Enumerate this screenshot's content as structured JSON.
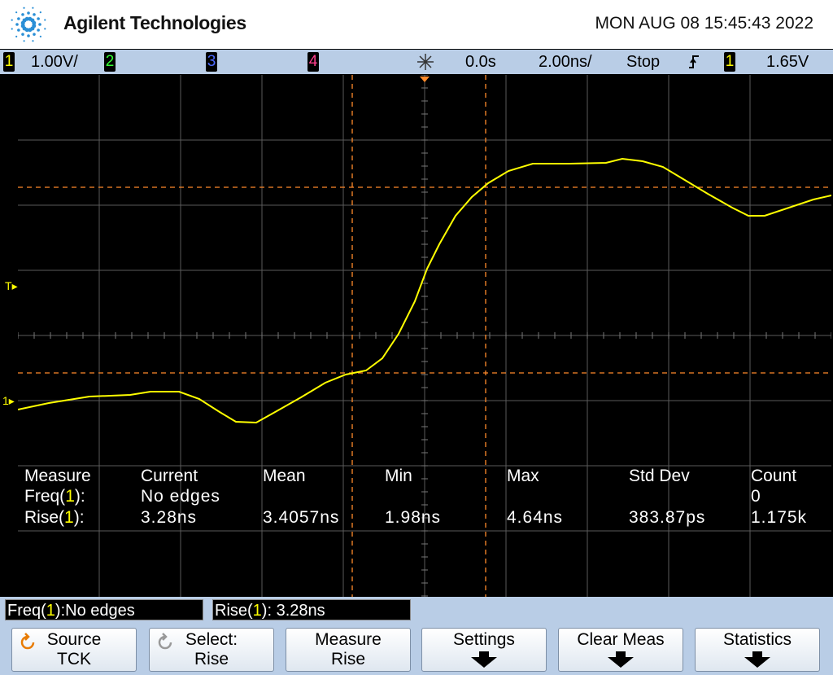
{
  "header": {
    "brand": "Agilent Technologies",
    "datetime": "MON AUG 08 15:45:43 2022"
  },
  "status_bar": {
    "ch1": "1",
    "ch1_scale": "1.00V/",
    "ch2": "2",
    "ch3": "3",
    "ch4": "4",
    "time_offset": "0.0s",
    "time_scale": "2.00ns/",
    "run_state": "Stop",
    "trigger_source": "1",
    "trigger_level": "1.65V"
  },
  "markers": {
    "trigger": "T",
    "channel": "1"
  },
  "measurements": {
    "headers": [
      "Measure",
      "Current",
      "Mean",
      "Min",
      "Max",
      "Std Dev",
      "Count"
    ],
    "freq": {
      "prefix": "Freq(",
      "channel": "1",
      "suffix": "):",
      "current": "No edges",
      "count": "0"
    },
    "rise": {
      "prefix": "Rise(",
      "channel": "1",
      "suffix": "):",
      "current": "3.28ns",
      "mean": "3.4057ns",
      "min": "1.98ns",
      "max": "4.64ns",
      "std_dev": "383.87ps",
      "count": "1.175k"
    }
  },
  "status_boxes": [
    {
      "prefix": "Freq(",
      "channel": "1",
      "suffix": "):No edges"
    },
    {
      "prefix": "Rise(",
      "channel": "1",
      "suffix": "): 3.28ns"
    }
  ],
  "softkeys": [
    {
      "line1": "Source",
      "line2": "TCK"
    },
    {
      "line1": "Select:",
      "line2": "Rise"
    },
    {
      "line1": "Measure",
      "line2": "Rise"
    },
    {
      "line1": "Settings"
    },
    {
      "line1": "Clear Meas"
    },
    {
      "line1": "Statistics"
    }
  ]
}
